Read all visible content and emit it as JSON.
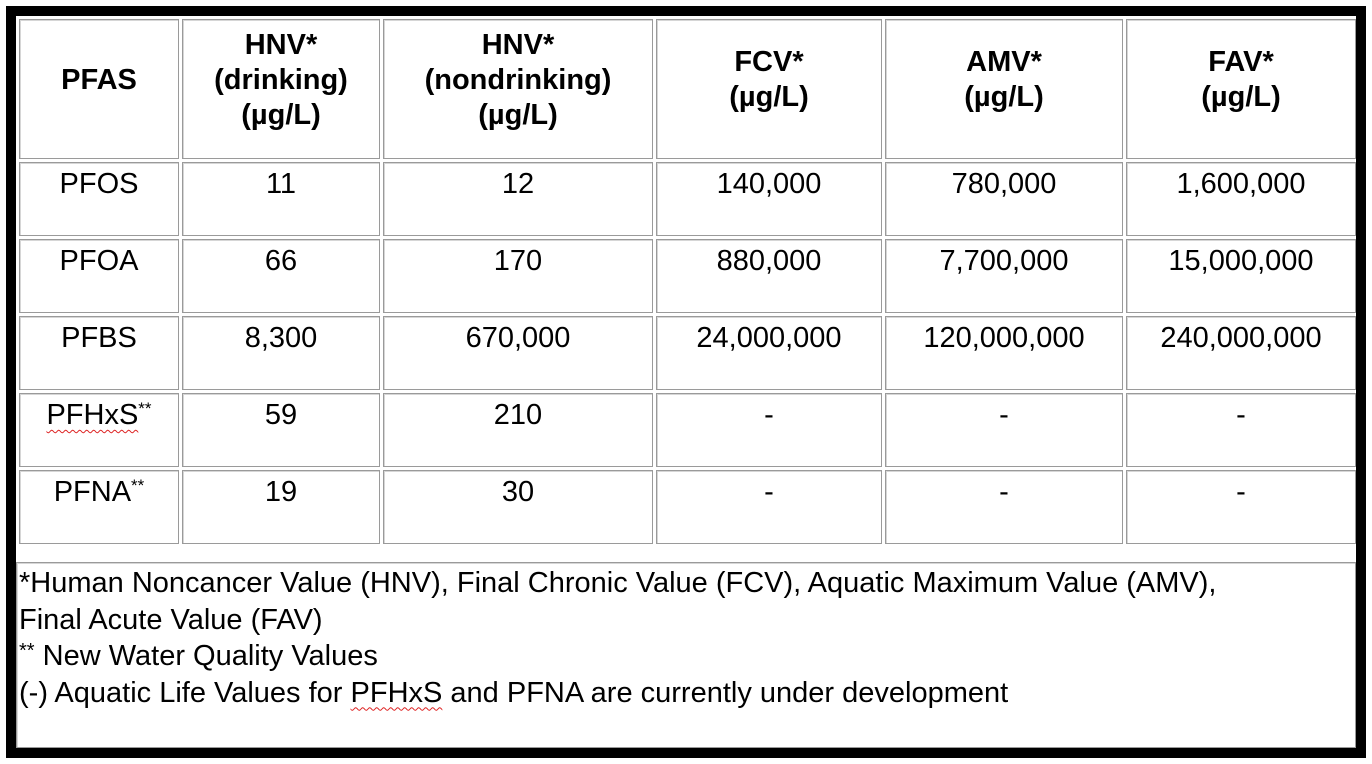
{
  "table": {
    "headers": [
      {
        "lines": [
          "PFAS"
        ]
      },
      {
        "lines": [
          "HNV*",
          "(drinking)",
          "(µg/L)"
        ]
      },
      {
        "lines": [
          "HNV*",
          "(nondrinking)",
          "(µg/L)"
        ]
      },
      {
        "lines": [
          "FCV*",
          "(µg/L)"
        ]
      },
      {
        "lines": [
          "AMV*",
          "(µg/L)"
        ]
      },
      {
        "lines": [
          "FAV*",
          "(µg/L)"
        ]
      }
    ],
    "rows": [
      {
        "pfas": "PFOS",
        "note": "",
        "hnv_drinking": "11",
        "hnv_nondrinking": "12",
        "fcv": "140,000",
        "amv": "780,000",
        "fav": "1,600,000"
      },
      {
        "pfas": "PFOA",
        "note": "",
        "hnv_drinking": "66",
        "hnv_nondrinking": "170",
        "fcv": "880,000",
        "amv": "7,700,000",
        "fav": "15,000,000"
      },
      {
        "pfas": "PFBS",
        "note": "",
        "hnv_drinking": "8,300",
        "hnv_nondrinking": "670,000",
        "fcv": "24,000,000",
        "amv": "120,000,000",
        "fav": "240,000,000"
      },
      {
        "pfas": "PFHxS",
        "note": "**",
        "hnv_drinking": "59",
        "hnv_nondrinking": "210",
        "fcv": "-",
        "amv": "-",
        "fav": "-"
      },
      {
        "pfas": "PFNA",
        "note": "**",
        "hnv_drinking": "19",
        "hnv_nondrinking": "30",
        "fcv": "-",
        "amv": "-",
        "fav": "-"
      }
    ]
  },
  "footnotes": {
    "definitions_line1": "*Human Noncancer Value (HNV), Final Chronic Value (FCV), Aquatic Maximum Value (AMV),",
    "definitions_line2": "Final Acute Value (FAV)",
    "new_values_marker": "**",
    "new_values_text": " New Water Quality Values",
    "development_prefix": "(-) Aquatic Life Values for ",
    "development_pfhxs": "PFHxS",
    "development_suffix": " and PFNA are currently under development"
  }
}
